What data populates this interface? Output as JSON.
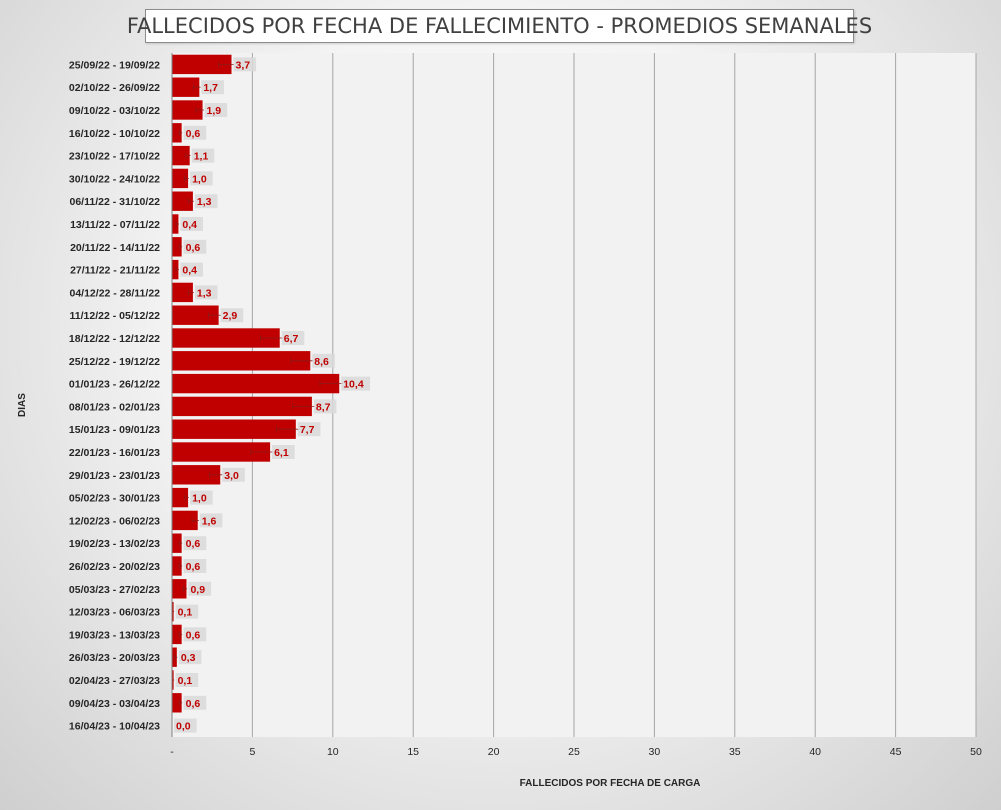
{
  "chart_data": {
    "type": "bar",
    "orientation": "horizontal",
    "title": "FALLECIDOS POR FECHA DE FALLECIMIENTO - PROMEDIOS SEMANALES",
    "xlabel": "FALLECIDOS POR FECHA DE CARGA",
    "ylabel": "DIAS",
    "xlim": [
      0,
      50
    ],
    "xticks": [
      0,
      5,
      10,
      15,
      20,
      25,
      30,
      35,
      40,
      45,
      50
    ],
    "xtick_labels": [
      "-",
      "5",
      "10",
      "15",
      "20",
      "25",
      "30",
      "35",
      "40",
      "45",
      "50"
    ],
    "grid": true,
    "error_bars": true,
    "categories": [
      "25/09/22 - 19/09/22",
      "02/10/22 - 26/09/22",
      "09/10/22 - 03/10/22",
      "16/10/22 - 10/10/22",
      "23/10/22 - 17/10/22",
      "30/10/22 - 24/10/22",
      "06/11/22 - 31/10/22",
      "13/11/22 - 07/11/22",
      "20/11/22 - 14/11/22",
      "27/11/22 - 21/11/22",
      "04/12/22 - 28/11/22",
      "11/12/22 - 05/12/22",
      "18/12/22 - 12/12/22",
      "25/12/22 - 19/12/22",
      "01/01/23 - 26/12/22",
      "08/01/23 - 02/01/23",
      "15/01/23 - 09/01/23",
      "22/01/23 - 16/01/23",
      "29/01/23 - 23/01/23",
      "05/02/23 - 30/01/23",
      "12/02/23 - 06/02/23",
      "19/02/23 - 13/02/23",
      "26/02/23 - 20/02/23",
      "05/03/23 - 27/02/23",
      "12/03/23 - 06/03/23",
      "19/03/23 - 13/03/23",
      "26/03/23 - 20/03/23",
      "02/04/23 - 27/03/23",
      "09/04/23 - 03/04/23",
      "16/04/23 - 10/04/23"
    ],
    "values": [
      3.7,
      1.7,
      1.9,
      0.6,
      1.1,
      1.0,
      1.3,
      0.4,
      0.6,
      0.4,
      1.3,
      2.9,
      6.7,
      8.6,
      10.4,
      8.7,
      7.7,
      6.1,
      3.0,
      1.0,
      1.6,
      0.6,
      0.6,
      0.9,
      0.1,
      0.6,
      0.3,
      0.1,
      0.6,
      0.0
    ],
    "value_labels": [
      "3,7",
      "1,7",
      "1,9",
      "0,6",
      "1,1",
      "1,0",
      "1,3",
      "0,4",
      "0,6",
      "0,4",
      "1,3",
      "2,9",
      "6,7",
      "8,6",
      "10,4",
      "8,7",
      "7,7",
      "6,1",
      "3,0",
      "1,0",
      "1,6",
      "0,6",
      "0,6",
      "0,9",
      "0,1",
      "0,6",
      "0,3",
      "0,1",
      "0,6",
      "0,0"
    ],
    "bar_color": "#c00000",
    "label_color": "#c00000"
  }
}
